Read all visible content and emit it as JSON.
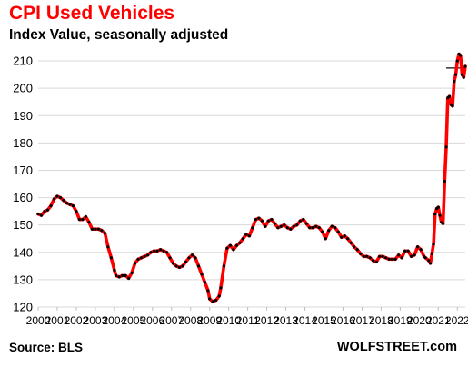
{
  "header": {
    "title": "CPI Used Vehicles",
    "subtitle": "Index Value, seasonally adjusted"
  },
  "footer": {
    "source": "Source: BLS",
    "brand": "WOLFSTREET.com"
  },
  "colors": {
    "line": "#ff0000",
    "points": "#000000",
    "grid": "#d9d9d9",
    "title": "#ff0000"
  },
  "chart_data": {
    "type": "line",
    "title": "CPI Used Vehicles",
    "subtitle": "Index Value, seasonally adjusted",
    "xlabel": "",
    "ylabel": "",
    "ylim": [
      120,
      215
    ],
    "xlim": [
      "2000-01",
      "2022-06"
    ],
    "grid": "horizontal",
    "y_ticks": [
      120,
      130,
      140,
      150,
      160,
      170,
      180,
      190,
      200,
      210
    ],
    "x_tick_labels": [
      "2000",
      "2001",
      "2002",
      "2003",
      "2004",
      "2005",
      "2006",
      "2007",
      "2008",
      "2009",
      "2010",
      "2011",
      "2012",
      "2013",
      "2014",
      "2015",
      "2016",
      "2017",
      "2018",
      "2019",
      "2020",
      "2021",
      "2022"
    ],
    "reference_line": {
      "y": 207.4,
      "x_start": "2021-06",
      "x_end": "2022-03"
    },
    "series": [
      {
        "points": [
          [
            "2000-01",
            154.0
          ],
          [
            "2000-03",
            153.5
          ],
          [
            "2000-05",
            155.0
          ],
          [
            "2000-07",
            155.5
          ],
          [
            "2000-09",
            157.0
          ],
          [
            "2000-11",
            159.5
          ],
          [
            "2001-01",
            160.5
          ],
          [
            "2001-03",
            160.0
          ],
          [
            "2001-05",
            159.0
          ],
          [
            "2001-07",
            158.0
          ],
          [
            "2001-09",
            157.5
          ],
          [
            "2001-11",
            157.0
          ],
          [
            "2002-01",
            155.0
          ],
          [
            "2002-03",
            152.0
          ],
          [
            "2002-05",
            152.0
          ],
          [
            "2002-07",
            153.0
          ],
          [
            "2002-09",
            151.0
          ],
          [
            "2002-11",
            148.5
          ],
          [
            "2003-01",
            148.5
          ],
          [
            "2003-03",
            148.5
          ],
          [
            "2003-05",
            148.0
          ],
          [
            "2003-07",
            147.0
          ],
          [
            "2003-09",
            142.0
          ],
          [
            "2003-11",
            138.0
          ],
          [
            "2004-01",
            133.5
          ],
          [
            "2004-02",
            131.5
          ],
          [
            "2004-04",
            131.0
          ],
          [
            "2004-06",
            131.5
          ],
          [
            "2004-08",
            131.5
          ],
          [
            "2004-10",
            130.5
          ],
          [
            "2004-12",
            132.5
          ],
          [
            "2005-02",
            136.0
          ],
          [
            "2005-04",
            137.5
          ],
          [
            "2005-06",
            138.0
          ],
          [
            "2005-08",
            138.5
          ],
          [
            "2005-10",
            139.0
          ],
          [
            "2005-12",
            140.0
          ],
          [
            "2006-02",
            140.5
          ],
          [
            "2006-04",
            140.5
          ],
          [
            "2006-06",
            141.0
          ],
          [
            "2006-08",
            140.5
          ],
          [
            "2006-10",
            140.0
          ],
          [
            "2006-12",
            138.0
          ],
          [
            "2007-02",
            136.0
          ],
          [
            "2007-04",
            135.0
          ],
          [
            "2007-06",
            134.5
          ],
          [
            "2007-08",
            135.0
          ],
          [
            "2007-10",
            136.5
          ],
          [
            "2007-12",
            138.0
          ],
          [
            "2008-02",
            139.0
          ],
          [
            "2008-04",
            138.0
          ],
          [
            "2008-06",
            135.0
          ],
          [
            "2008-08",
            132.0
          ],
          [
            "2008-10",
            129.0
          ],
          [
            "2008-12",
            126.0
          ],
          [
            "2009-01",
            123.0
          ],
          [
            "2009-03",
            122.0
          ],
          [
            "2009-05",
            122.5
          ],
          [
            "2009-07",
            124.0
          ],
          [
            "2009-08",
            127.0
          ],
          [
            "2009-10",
            135.0
          ],
          [
            "2009-12",
            141.5
          ],
          [
            "2010-02",
            142.5
          ],
          [
            "2010-04",
            141.0
          ],
          [
            "2010-06",
            142.5
          ],
          [
            "2010-08",
            143.5
          ],
          [
            "2010-10",
            145.0
          ],
          [
            "2010-12",
            146.5
          ],
          [
            "2011-02",
            146.0
          ],
          [
            "2011-04",
            149.0
          ],
          [
            "2011-06",
            152.0
          ],
          [
            "2011-08",
            152.5
          ],
          [
            "2011-10",
            151.5
          ],
          [
            "2011-12",
            149.5
          ],
          [
            "2012-02",
            151.5
          ],
          [
            "2012-04",
            152.0
          ],
          [
            "2012-06",
            150.5
          ],
          [
            "2012-08",
            149.0
          ],
          [
            "2012-10",
            149.5
          ],
          [
            "2012-12",
            150.0
          ],
          [
            "2013-02",
            149.0
          ],
          [
            "2013-04",
            148.5
          ],
          [
            "2013-06",
            149.5
          ],
          [
            "2013-08",
            150.0
          ],
          [
            "2013-10",
            151.5
          ],
          [
            "2013-12",
            152.0
          ],
          [
            "2014-02",
            150.5
          ],
          [
            "2014-04",
            149.0
          ],
          [
            "2014-06",
            149.0
          ],
          [
            "2014-08",
            149.5
          ],
          [
            "2014-10",
            149.0
          ],
          [
            "2014-12",
            147.5
          ],
          [
            "2015-02",
            145.0
          ],
          [
            "2015-04",
            148.0
          ],
          [
            "2015-06",
            149.5
          ],
          [
            "2015-08",
            149.0
          ],
          [
            "2015-10",
            147.5
          ],
          [
            "2015-12",
            145.5
          ],
          [
            "2016-02",
            146.0
          ],
          [
            "2016-04",
            145.0
          ],
          [
            "2016-06",
            143.5
          ],
          [
            "2016-08",
            142.0
          ],
          [
            "2016-10",
            141.0
          ],
          [
            "2016-12",
            139.5
          ],
          [
            "2017-02",
            138.5
          ],
          [
            "2017-04",
            138.5
          ],
          [
            "2017-06",
            138.0
          ],
          [
            "2017-08",
            137.0
          ],
          [
            "2017-10",
            136.5
          ],
          [
            "2017-12",
            138.5
          ],
          [
            "2018-02",
            138.5
          ],
          [
            "2018-04",
            138.0
          ],
          [
            "2018-06",
            137.5
          ],
          [
            "2018-08",
            137.5
          ],
          [
            "2018-10",
            137.5
          ],
          [
            "2018-12",
            139.0
          ],
          [
            "2019-02",
            138.0
          ],
          [
            "2019-04",
            140.5
          ],
          [
            "2019-06",
            140.5
          ],
          [
            "2019-08",
            138.5
          ],
          [
            "2019-10",
            139.0
          ],
          [
            "2019-12",
            142.0
          ],
          [
            "2020-02",
            141.0
          ],
          [
            "2020-04",
            138.5
          ],
          [
            "2020-05",
            138.0
          ],
          [
            "2020-07",
            137.0
          ],
          [
            "2020-08",
            136.0
          ],
          [
            "2020-09",
            139.5
          ],
          [
            "2020-10",
            143.0
          ],
          [
            "2020-11",
            154.0
          ],
          [
            "2020-12",
            156.0
          ],
          [
            "2021-01",
            156.5
          ],
          [
            "2021-02",
            153.5
          ],
          [
            "2021-03",
            151.0
          ],
          [
            "2021-04",
            150.5
          ],
          [
            "2021-05",
            166.0
          ],
          [
            "2021-06",
            178.5
          ],
          [
            "2021-07",
            196.5
          ],
          [
            "2021-08",
            197.0
          ],
          [
            "2021-09",
            194.0
          ],
          [
            "2021-10",
            193.5
          ],
          [
            "2021-11",
            202.5
          ],
          [
            "2021-12",
            205.0
          ],
          [
            "2022-01",
            210.0
          ],
          [
            "2022-02",
            212.5
          ],
          [
            "2022-03",
            212.0
          ],
          [
            "2022-04",
            205.0
          ],
          [
            "2022-05",
            204.0
          ],
          [
            "2022-06",
            208.0
          ]
        ]
      }
    ]
  }
}
